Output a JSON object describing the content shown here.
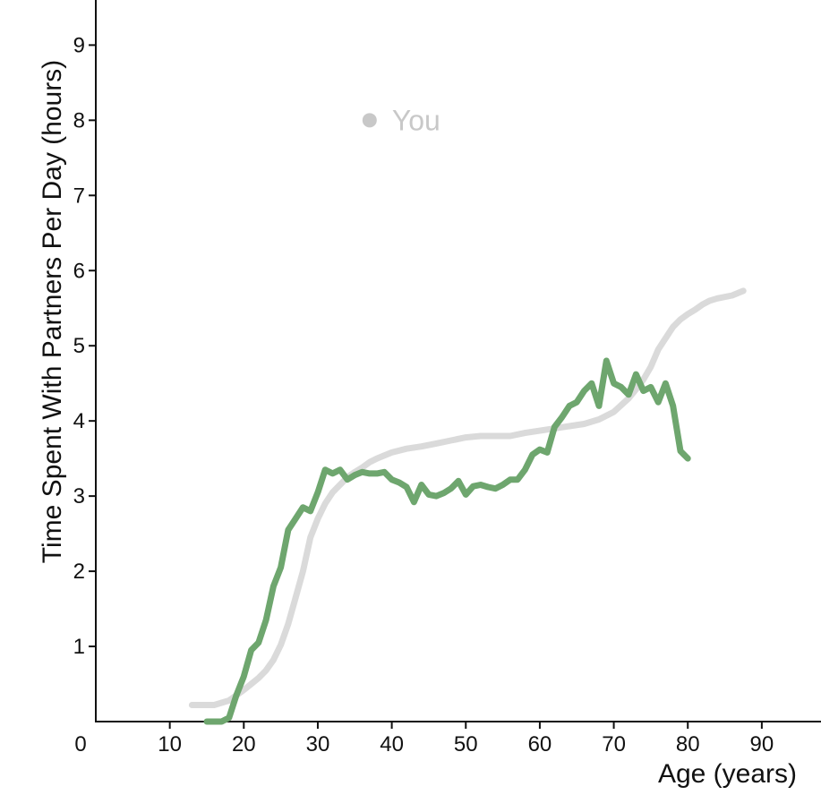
{
  "chart_data": {
    "type": "line",
    "title": "",
    "xlabel": "Age (years)",
    "ylabel": "Time Spent With Partners Per Day (hours)",
    "xlim": [
      0,
      98
    ],
    "ylim": [
      0,
      9.6
    ],
    "x_ticks": [
      0,
      10,
      20,
      30,
      40,
      50,
      60,
      70,
      80,
      90
    ],
    "y_ticks": [
      1,
      2,
      3,
      4,
      5,
      6,
      7,
      8,
      9
    ],
    "grid": false,
    "legend": {
      "position": "top-left",
      "entries": [
        {
          "label": "You",
          "color": "#c8c8c8"
        }
      ]
    },
    "series": [
      {
        "name": "You",
        "color": "#dadada",
        "x": [
          13,
          14,
          15,
          16,
          17,
          18,
          19,
          20,
          21,
          22,
          23,
          24,
          25,
          26,
          27,
          28,
          29,
          30,
          31,
          32,
          33,
          34,
          35,
          36,
          37,
          38,
          39,
          40,
          42,
          44,
          46,
          48,
          50,
          52,
          54,
          56,
          58,
          60,
          62,
          64,
          66,
          68,
          70,
          72,
          73,
          74,
          75,
          76,
          77,
          78,
          79,
          80,
          81,
          82,
          83,
          84,
          86,
          87.5
        ],
        "y": [
          0.22,
          0.22,
          0.22,
          0.22,
          0.25,
          0.28,
          0.35,
          0.42,
          0.5,
          0.58,
          0.68,
          0.82,
          1.02,
          1.3,
          1.65,
          2.0,
          2.45,
          2.7,
          2.9,
          3.05,
          3.15,
          3.25,
          3.32,
          3.38,
          3.45,
          3.5,
          3.54,
          3.58,
          3.63,
          3.66,
          3.7,
          3.74,
          3.78,
          3.8,
          3.8,
          3.8,
          3.84,
          3.87,
          3.9,
          3.93,
          3.96,
          4.02,
          4.12,
          4.3,
          4.42,
          4.55,
          4.72,
          4.95,
          5.1,
          5.25,
          5.35,
          5.42,
          5.48,
          5.55,
          5.6,
          5.63,
          5.67,
          5.73
        ]
      },
      {
        "name": "",
        "color": "#6ea66e",
        "x": [
          15,
          16,
          17,
          18,
          19,
          20,
          21,
          22,
          23,
          24,
          25,
          26,
          27,
          28,
          29,
          30,
          31,
          32,
          33,
          34,
          35,
          36,
          37,
          38,
          39,
          40,
          41,
          42,
          43,
          44,
          45,
          46,
          47,
          48,
          49,
          50,
          51,
          52,
          53,
          54,
          55,
          56,
          57,
          58,
          59,
          60,
          61,
          62,
          63,
          64,
          65,
          66,
          67,
          68,
          69,
          70,
          71,
          72,
          73,
          74,
          75,
          76,
          77,
          78,
          79,
          80
        ],
        "y": [
          0.0,
          0.0,
          0.0,
          0.05,
          0.35,
          0.6,
          0.95,
          1.05,
          1.35,
          1.8,
          2.05,
          2.55,
          2.7,
          2.85,
          2.8,
          3.05,
          3.35,
          3.3,
          3.35,
          3.22,
          3.28,
          3.32,
          3.3,
          3.3,
          3.32,
          3.22,
          3.18,
          3.12,
          2.92,
          3.15,
          3.02,
          3.0,
          3.04,
          3.1,
          3.2,
          3.02,
          3.13,
          3.15,
          3.12,
          3.1,
          3.15,
          3.22,
          3.22,
          3.35,
          3.55,
          3.62,
          3.58,
          3.92,
          4.05,
          4.2,
          4.25,
          4.4,
          4.5,
          4.2,
          4.8,
          4.5,
          4.45,
          4.35,
          4.62,
          4.4,
          4.45,
          4.25,
          4.5,
          4.2,
          3.6,
          3.5
        ]
      }
    ]
  }
}
